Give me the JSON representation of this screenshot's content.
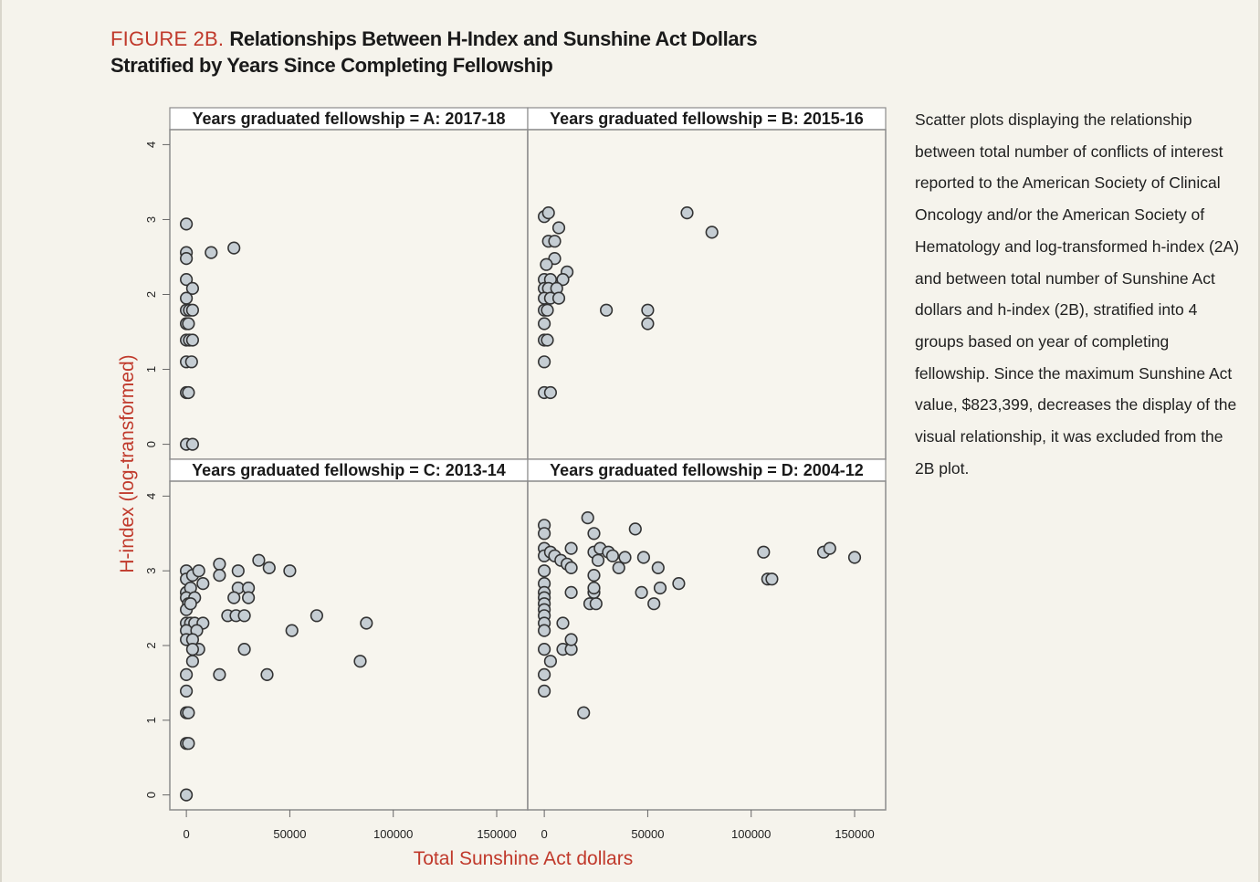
{
  "figure": {
    "label": "FIGURE 2B.",
    "title": "Relationships Between H-Index and Sunshine Act Dollars Stratified by Years Since Completing Fellowship"
  },
  "caption": "Scatter plots displaying the relationship between total number of conflicts of interest reported to the American Society of Clinical Oncology and/or the American Society of Hematology and log-transformed h-index (2A) and between total number of Sunshine Act dollars and h-index (2B), stratified into 4 groups based on year of completing fellowship. Since the maximum Sunshine Act value, $823,399, decreases the display of the visual relationship, it was excluded from the 2B plot.",
  "chart_data": {
    "type": "scatter",
    "xlabel": "Total Sunshine Act dollars",
    "ylabel": "H-index (log-transformed)",
    "xlim": [
      -8000,
      165000
    ],
    "ylim": [
      -0.2,
      4.2
    ],
    "xticks": [
      0,
      50000,
      100000,
      150000
    ],
    "xtick_labels": [
      "0",
      "50000",
      "100000",
      "150000"
    ],
    "yticks": [
      0,
      1,
      2,
      3,
      4
    ],
    "ytick_labels": [
      "0",
      "1",
      "2",
      "3",
      "4"
    ],
    "panels": [
      {
        "label": "Years graduated fellowship = A: 2017-18",
        "points": [
          [
            0,
            2.94
          ],
          [
            0,
            2.56
          ],
          [
            0,
            2.48
          ],
          [
            12000,
            2.56
          ],
          [
            23000,
            2.62
          ],
          [
            0,
            2.2
          ],
          [
            3000,
            2.08
          ],
          [
            0,
            1.95
          ],
          [
            0,
            1.79
          ],
          [
            1500,
            1.79
          ],
          [
            3000,
            1.79
          ],
          [
            0,
            1.61
          ],
          [
            1000,
            1.61
          ],
          [
            0,
            1.39
          ],
          [
            1500,
            1.39
          ],
          [
            3000,
            1.39
          ],
          [
            0,
            1.1
          ],
          [
            2500,
            1.1
          ],
          [
            0,
            0.69
          ],
          [
            1000,
            0.69
          ],
          [
            0,
            0
          ],
          [
            3000,
            0
          ]
        ]
      },
      {
        "label": "Years graduated fellowship = B: 2015-16",
        "points": [
          [
            0,
            3.04
          ],
          [
            2000,
            3.09
          ],
          [
            7000,
            2.89
          ],
          [
            2000,
            2.71
          ],
          [
            5000,
            2.71
          ],
          [
            5000,
            2.48
          ],
          [
            1000,
            2.4
          ],
          [
            11000,
            2.3
          ],
          [
            0,
            2.2
          ],
          [
            3000,
            2.2
          ],
          [
            9000,
            2.2
          ],
          [
            0,
            2.08
          ],
          [
            2000,
            2.08
          ],
          [
            6000,
            2.08
          ],
          [
            0,
            1.95
          ],
          [
            3000,
            1.95
          ],
          [
            7000,
            1.95
          ],
          [
            0,
            1.79
          ],
          [
            1500,
            1.79
          ],
          [
            30000,
            1.79
          ],
          [
            50000,
            1.79
          ],
          [
            0,
            1.61
          ],
          [
            50000,
            1.61
          ],
          [
            0,
            1.39
          ],
          [
            1500,
            1.39
          ],
          [
            0,
            1.1
          ],
          [
            0,
            0.69
          ],
          [
            3000,
            0.69
          ],
          [
            69000,
            3.09
          ],
          [
            81000,
            2.83
          ]
        ]
      },
      {
        "label": "Years graduated fellowship  = C: 2013-14",
        "points": [
          [
            0,
            3.0
          ],
          [
            0,
            2.89
          ],
          [
            3000,
            2.94
          ],
          [
            6000,
            3.0
          ],
          [
            8000,
            2.83
          ],
          [
            0,
            2.71
          ],
          [
            2000,
            2.77
          ],
          [
            0,
            2.64
          ],
          [
            1000,
            2.56
          ],
          [
            4000,
            2.64
          ],
          [
            0,
            2.48
          ],
          [
            2000,
            2.56
          ],
          [
            0,
            2.3
          ],
          [
            2000,
            2.3
          ],
          [
            4000,
            2.3
          ],
          [
            8000,
            2.3
          ],
          [
            0,
            2.2
          ],
          [
            5000,
            2.2
          ],
          [
            0,
            2.08
          ],
          [
            3000,
            2.08
          ],
          [
            6000,
            1.95
          ],
          [
            3000,
            1.95
          ],
          [
            3000,
            1.79
          ],
          [
            0,
            1.61
          ],
          [
            0,
            1.39
          ],
          [
            0,
            1.1
          ],
          [
            1000,
            1.1
          ],
          [
            0,
            0.69
          ],
          [
            1000,
            0.69
          ],
          [
            0,
            0
          ],
          [
            16000,
            3.09
          ],
          [
            16000,
            2.94
          ],
          [
            25000,
            3.0
          ],
          [
            25000,
            2.77
          ],
          [
            30000,
            2.77
          ],
          [
            23000,
            2.64
          ],
          [
            30000,
            2.64
          ],
          [
            20000,
            2.4
          ],
          [
            24000,
            2.4
          ],
          [
            28000,
            2.4
          ],
          [
            35000,
            3.14
          ],
          [
            40000,
            3.04
          ],
          [
            50000,
            3.0
          ],
          [
            28000,
            1.95
          ],
          [
            16000,
            1.61
          ],
          [
            39000,
            1.61
          ],
          [
            51000,
            2.2
          ],
          [
            63000,
            2.4
          ],
          [
            87000,
            2.3
          ],
          [
            84000,
            1.79
          ]
        ]
      },
      {
        "label": "Years graduated fellowship  = D: 2004-12",
        "points": [
          [
            0,
            3.61
          ],
          [
            0,
            3.5
          ],
          [
            0,
            3.3
          ],
          [
            0,
            3.2
          ],
          [
            3000,
            3.25
          ],
          [
            5000,
            3.2
          ],
          [
            8000,
            3.14
          ],
          [
            11000,
            3.09
          ],
          [
            0,
            3.0
          ],
          [
            0,
            2.83
          ],
          [
            0,
            2.71
          ],
          [
            0,
            2.64
          ],
          [
            0,
            2.56
          ],
          [
            0,
            2.48
          ],
          [
            0,
            2.4
          ],
          [
            0,
            2.3
          ],
          [
            0,
            2.2
          ],
          [
            0,
            1.95
          ],
          [
            0,
            1.61
          ],
          [
            0,
            1.39
          ],
          [
            3000,
            1.79
          ],
          [
            9000,
            2.3
          ],
          [
            9000,
            1.95
          ],
          [
            13000,
            1.95
          ],
          [
            13000,
            2.08
          ],
          [
            13000,
            2.71
          ],
          [
            13000,
            3.04
          ],
          [
            13000,
            3.3
          ],
          [
            21000,
            3.71
          ],
          [
            24000,
            3.5
          ],
          [
            24000,
            3.25
          ],
          [
            26000,
            3.14
          ],
          [
            27000,
            3.3
          ],
          [
            31000,
            3.25
          ],
          [
            33000,
            3.2
          ],
          [
            36000,
            3.04
          ],
          [
            39000,
            3.18
          ],
          [
            44000,
            3.56
          ],
          [
            48000,
            3.18
          ],
          [
            55000,
            3.04
          ],
          [
            22000,
            2.56
          ],
          [
            25000,
            2.56
          ],
          [
            24000,
            2.71
          ],
          [
            24000,
            2.94
          ],
          [
            24000,
            2.77
          ],
          [
            47000,
            2.71
          ],
          [
            53000,
            2.56
          ],
          [
            56000,
            2.77
          ],
          [
            65000,
            2.83
          ],
          [
            19000,
            1.1
          ],
          [
            106000,
            3.25
          ],
          [
            108000,
            2.89
          ],
          [
            110000,
            2.89
          ],
          [
            135000,
            3.25
          ],
          [
            138000,
            3.3
          ],
          [
            150000,
            3.18
          ]
        ]
      }
    ]
  }
}
